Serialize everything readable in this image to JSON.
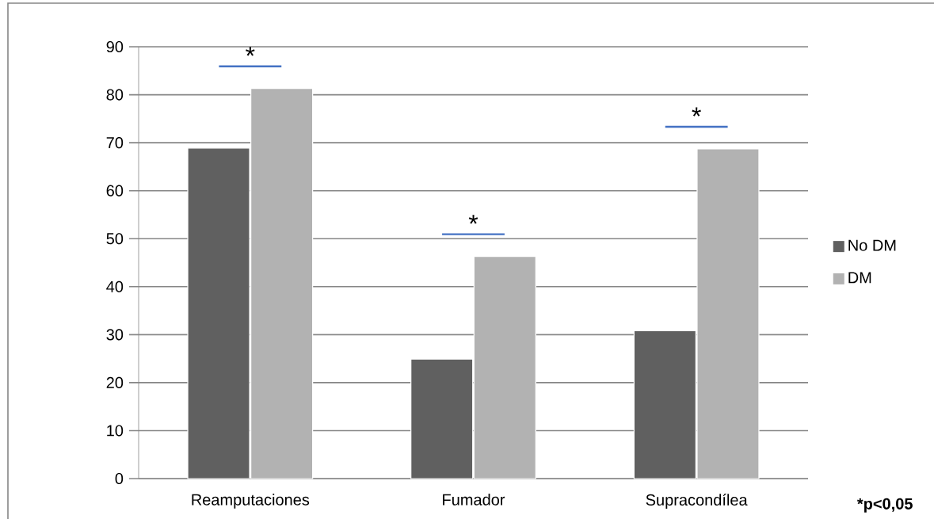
{
  "chart_data": {
    "type": "bar",
    "categories": [
      "Reamputaciones",
      "Fumador",
      "Supracondílea"
    ],
    "series": [
      {
        "name": "No DM",
        "color": "#606060",
        "values": [
          68.9,
          24.9,
          30.8
        ]
      },
      {
        "name": "DM",
        "color": "#b2b2b2",
        "values": [
          81.3,
          46.3,
          68.7
        ]
      }
    ],
    "ylim": [
      0,
      90
    ],
    "yticks": [
      0,
      10,
      20,
      30,
      40,
      50,
      60,
      70,
      80,
      90
    ],
    "grid": "y",
    "legend": "right",
    "annotations": [
      "*",
      "*",
      "*",
      "*p<0,05"
    ]
  }
}
